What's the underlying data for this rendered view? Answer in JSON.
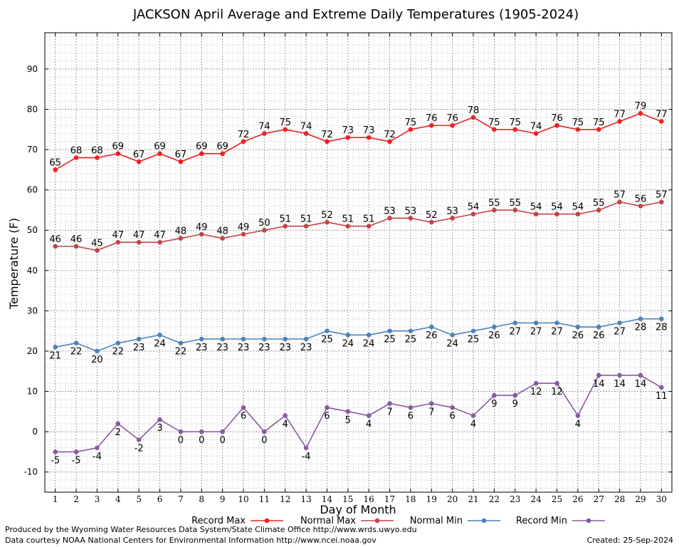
{
  "chart_data": {
    "type": "line",
    "title": "JACKSON April Average and Extreme Daily Temperatures (1905-2024)",
    "xlabel": "Day of Month",
    "ylabel": "Temperature (F)",
    "ylim": [
      -15,
      99
    ],
    "yticks": [
      -10,
      0,
      10,
      20,
      30,
      40,
      50,
      60,
      70,
      80,
      90
    ],
    "x": [
      1,
      2,
      3,
      4,
      5,
      6,
      7,
      8,
      9,
      10,
      11,
      12,
      13,
      14,
      15,
      16,
      17,
      18,
      19,
      20,
      21,
      22,
      23,
      24,
      25,
      26,
      27,
      28,
      29,
      30
    ],
    "grid": true,
    "legend_position": "bottom",
    "series": [
      {
        "name": "Record Max",
        "color": "#ee2222",
        "label_side": "above",
        "values": [
          65,
          68,
          68,
          69,
          67,
          69,
          67,
          69,
          69,
          72,
          74,
          75,
          74,
          72,
          73,
          73,
          72,
          75,
          76,
          76,
          78,
          75,
          75,
          74,
          76,
          75,
          75,
          77,
          79,
          77
        ]
      },
      {
        "name": "Normal Max",
        "color": "#c0454a",
        "label_side": "above",
        "values": [
          46,
          46,
          45,
          47,
          47,
          47,
          48,
          49,
          48,
          49,
          50,
          51,
          51,
          52,
          51,
          51,
          53,
          53,
          52,
          53,
          54,
          55,
          55,
          54,
          54,
          54,
          55,
          57,
          56,
          57
        ]
      },
      {
        "name": "Normal Min",
        "color": "#4d82b8",
        "label_side": "below",
        "values": [
          21,
          22,
          20,
          22,
          23,
          24,
          22,
          23,
          23,
          23,
          23,
          23,
          23,
          25,
          24,
          24,
          25,
          25,
          26,
          24,
          25,
          26,
          27,
          27,
          27,
          26,
          26,
          27,
          28,
          28
        ]
      },
      {
        "name": "Record Min",
        "color": "#8a5aa0",
        "label_side": "below",
        "values": [
          -5,
          -5,
          -4,
          2,
          -2,
          3,
          0,
          0,
          0,
          6,
          0,
          4,
          -4,
          6,
          5,
          4,
          7,
          6,
          7,
          6,
          4,
          9,
          9,
          12,
          12,
          4,
          14,
          14,
          14,
          11
        ]
      }
    ]
  },
  "footer": {
    "credit_line1": "Produced by the Wyoming Water Resources Data System/State Climate Office http://www.wrds.uwyo.edu",
    "credit_line2": "Data courtesy NOAA National Centers for Environmental Information http://www.ncei.noaa.gov",
    "created": "Created:  25-Sep-2024"
  }
}
